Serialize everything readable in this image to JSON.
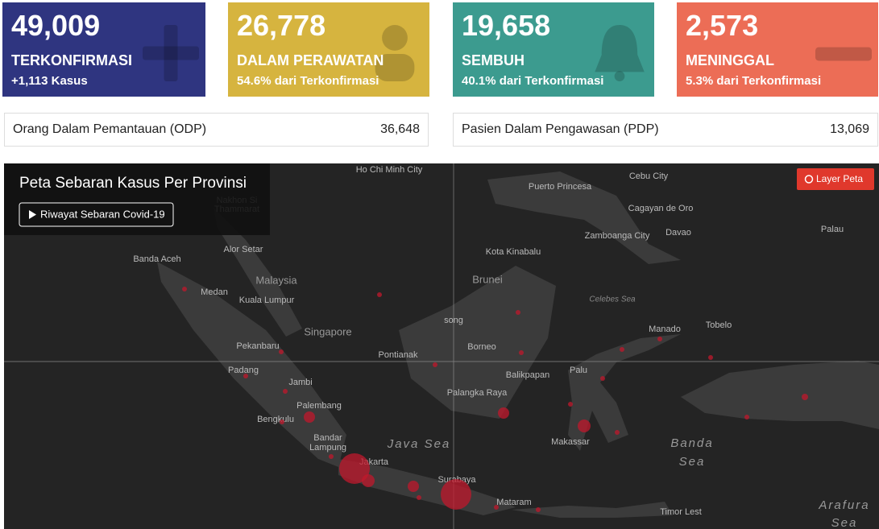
{
  "cards": [
    {
      "value": "49,009",
      "label": "TERKONFIRMASI",
      "sub": "+1,113 Kasus"
    },
    {
      "value": "26,778",
      "label": "DALAM PERAWATAN",
      "sub": "54.6% dari Terkonfirmasi"
    },
    {
      "value": "19,658",
      "label": "SEMBUH",
      "sub": "40.1% dari Terkonfirmasi"
    },
    {
      "value": "2,573",
      "label": "MENINGGAL",
      "sub": "5.3% dari Terkonfirmasi"
    }
  ],
  "monitoring": [
    {
      "label": "Orang Dalam Pemantauan (ODP)",
      "value": "36,648"
    },
    {
      "label": "Pasien Dalam Pengawasan (PDP)",
      "value": "13,069"
    }
  ],
  "map": {
    "title": "Peta Sebaran Kasus Per Provinsi",
    "history_button": "Riwayat Sebaran Covid-19",
    "layer_button": "Layer Peta",
    "labels": [
      "Ho Chi Minh City",
      "Cebu City",
      "Puerto Princesa",
      "Nakhon Si",
      "Thammarat",
      "Cagayan de Oro",
      "Zamboanga City",
      "Davao",
      "Palau",
      "Banda Aceh",
      "Alor Setar",
      "Kota Kinabalu",
      "Malaysia",
      "Brunei",
      "Medan",
      "Kuala Lumpur",
      "Celebes Sea",
      "Singapore",
      "song",
      "Manado",
      "Tobelo",
      "Pekanbaru",
      "Borneo",
      "Pontianak",
      "Padang",
      "Balikpapan",
      "Palu",
      "Jambi",
      "Palangka Raya",
      "Palembang",
      "Bengkulu",
      "Bandar",
      "Lampung",
      "Java Sea",
      "Banda",
      "Sea",
      "Makassar",
      "Jakarta",
      "Surabaya",
      "Mataram",
      "Timor Lest",
      "Arafura",
      "Sea"
    ]
  }
}
